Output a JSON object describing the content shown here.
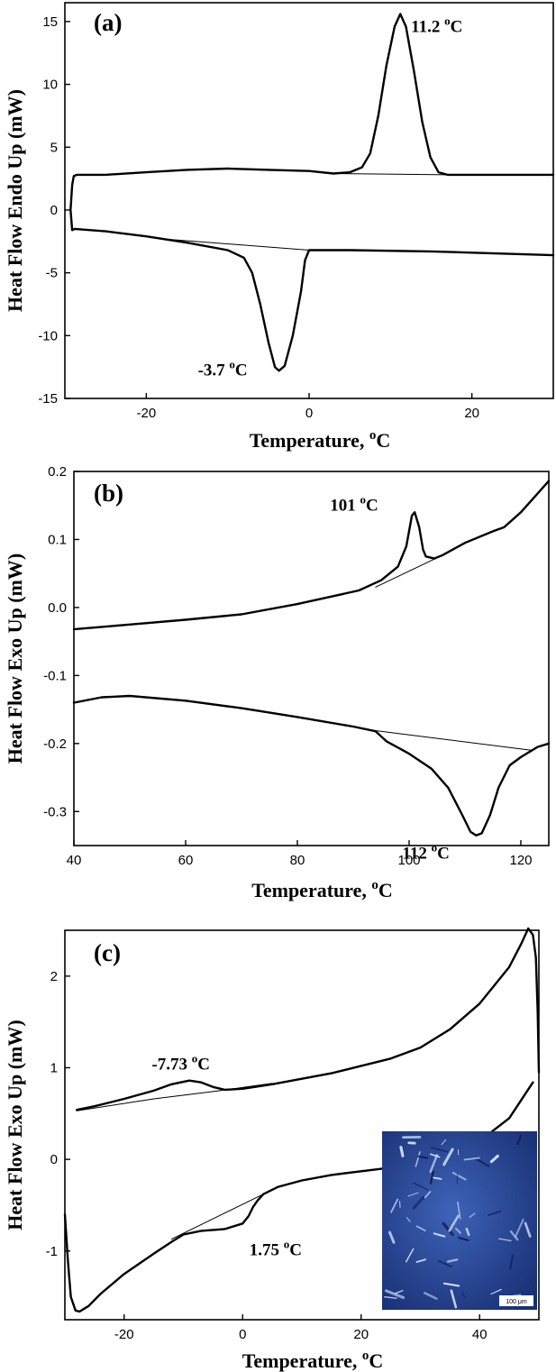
{
  "chart_data": [
    {
      "type": "line",
      "panel_label": "(a)",
      "xlabel": "Temperature, ",
      "xlabel_unit": "C",
      "ylabel": "Heat Flow Endo Up (mW)",
      "xlim": [
        -30,
        30
      ],
      "ylim": [
        -15,
        16.5
      ],
      "xticks": [
        -20,
        0,
        20
      ],
      "yticks": [
        -15,
        -10,
        -5,
        0,
        5,
        10,
        15
      ],
      "annotations": [
        {
          "text": "11.2 ",
          "unit": "C",
          "x": 11.2,
          "y": 15.6
        },
        {
          "text": "-3.7 ",
          "unit": "C",
          "x": -3.7,
          "y": -12.8
        }
      ],
      "series": [
        {
          "points": [
            [
              -29.3,
              0
            ],
            [
              -29.1,
              2.0
            ],
            [
              -28.9,
              2.7
            ],
            [
              -28.5,
              2.8
            ],
            [
              -25,
              2.8
            ],
            [
              -20,
              3.0
            ],
            [
              -15,
              3.2
            ],
            [
              -10,
              3.3
            ],
            [
              -5,
              3.2
            ],
            [
              0,
              3.1
            ],
            [
              3,
              2.9
            ],
            [
              5,
              3.0
            ],
            [
              6.5,
              3.4
            ],
            [
              7.5,
              4.5
            ],
            [
              8.5,
              7.5
            ],
            [
              9.5,
              11.5
            ],
            [
              10.5,
              14.6
            ],
            [
              11.2,
              15.6
            ],
            [
              11.9,
              14.6
            ],
            [
              12.9,
              11
            ],
            [
              13.9,
              7
            ],
            [
              14.9,
              4.2
            ],
            [
              15.9,
              3.0
            ],
            [
              17,
              2.8
            ],
            [
              25,
              2.8
            ],
            [
              30,
              2.8
            ]
          ]
        },
        {
          "points": [
            [
              -29.3,
              0
            ],
            [
              -29.1,
              -1.6
            ],
            [
              -28.8,
              -1.5
            ],
            [
              -25,
              -1.7
            ],
            [
              -20,
              -2.1
            ],
            [
              -15,
              -2.6
            ],
            [
              -10,
              -3.2
            ],
            [
              -8,
              -3.8
            ],
            [
              -7,
              -5.0
            ],
            [
              -6,
              -7.5
            ],
            [
              -5,
              -10.5
            ],
            [
              -4.2,
              -12.5
            ],
            [
              -3.7,
              -12.8
            ],
            [
              -3.0,
              -12.4
            ],
            [
              -2,
              -10.0
            ],
            [
              -1,
              -6.5
            ],
            [
              -0.5,
              -4.0
            ],
            [
              0,
              -3.2
            ],
            [
              5,
              -3.2
            ],
            [
              15,
              -3.3
            ],
            [
              25,
              -3.5
            ],
            [
              30,
              -3.6
            ]
          ]
        },
        {
          "points": [
            [
              3,
              2.9
            ],
            [
              17,
              2.8
            ]
          ],
          "thin": true
        },
        {
          "points": [
            [
              -18,
              -2.3
            ],
            [
              0,
              -3.2
            ]
          ],
          "thin": true
        }
      ]
    },
    {
      "type": "line",
      "panel_label": "(b)",
      "xlabel": "Temperature, ",
      "xlabel_unit": "C",
      "ylabel": "Heat Flow Exo Up (mW)",
      "xlim": [
        40,
        125
      ],
      "ylim": [
        -0.35,
        0.2
      ],
      "xticks": [
        40,
        60,
        80,
        100,
        120
      ],
      "yticks": [
        -0.3,
        -0.2,
        -0.1,
        0.0,
        0.1,
        0.2
      ],
      "ytick_labels": [
        "-0.3",
        "-0.2",
        "-0.1",
        "0.0",
        "0.1",
        "0.2"
      ],
      "annotations": [
        {
          "text": "101 ",
          "unit": "C",
          "x": 101,
          "y": 0.14
        },
        {
          "text": "112 ",
          "unit": "C",
          "x": 112,
          "y": -0.335
        }
      ],
      "series": [
        {
          "points": [
            [
              40,
              -0.032
            ],
            [
              50,
              -0.025
            ],
            [
              60,
              -0.018
            ],
            [
              70,
              -0.01
            ],
            [
              80,
              0.005
            ],
            [
              91,
              0.025
            ],
            [
              95,
              0.04
            ],
            [
              98,
              0.06
            ],
            [
              99.5,
              0.09
            ],
            [
              100.5,
              0.135
            ],
            [
              101,
              0.14
            ],
            [
              101.8,
              0.118
            ],
            [
              102.5,
              0.085
            ],
            [
              103,
              0.075
            ],
            [
              104.5,
              0.072
            ],
            [
              106,
              0.077
            ],
            [
              110,
              0.095
            ],
            [
              115,
              0.112
            ],
            [
              117,
              0.118
            ],
            [
              120,
              0.14
            ],
            [
              125,
              0.186
            ]
          ]
        },
        {
          "points": [
            [
              40,
              -0.14
            ],
            [
              45,
              -0.132
            ],
            [
              50,
              -0.13
            ],
            [
              60,
              -0.137
            ],
            [
              70,
              -0.148
            ],
            [
              80,
              -0.161
            ],
            [
              90,
              -0.175
            ],
            [
              94,
              -0.182
            ],
            [
              96,
              -0.197
            ],
            [
              100,
              -0.215
            ],
            [
              104,
              -0.237
            ],
            [
              107,
              -0.265
            ],
            [
              109.5,
              -0.305
            ],
            [
              111,
              -0.33
            ],
            [
              112,
              -0.335
            ],
            [
              113,
              -0.332
            ],
            [
              114.5,
              -0.305
            ],
            [
              116,
              -0.265
            ],
            [
              118,
              -0.232
            ],
            [
              120,
              -0.22
            ],
            [
              123,
              -0.205
            ],
            [
              125,
              -0.2
            ]
          ]
        },
        {
          "points": [
            [
              94,
              0.03
            ],
            [
              106,
              0.077
            ]
          ],
          "thin": true
        },
        {
          "points": [
            [
              93,
              -0.18
            ],
            [
              122,
              -0.21
            ]
          ],
          "thin": true
        }
      ]
    },
    {
      "type": "line",
      "panel_label": "(c)",
      "xlabel": "Temperature, ",
      "xlabel_unit": "C",
      "ylabel": "Heat Flow Exo Up (mW)",
      "xlim": [
        -30,
        50
      ],
      "ylim": [
        -1.75,
        2.5
      ],
      "xticks": [
        -20,
        0,
        20,
        40
      ],
      "yticks": [
        -1,
        0,
        1,
        2
      ],
      "annotations": [
        {
          "text": "-7.73 ",
          "unit": "C",
          "x": -7.73,
          "y": 0.86
        },
        {
          "text": "1.75 ",
          "unit": "C",
          "x": 1.75,
          "y": -0.75
        }
      ],
      "inset": {
        "scale_bar": "100 μm"
      },
      "series": [
        {
          "points": [
            [
              -28,
              0.54
            ],
            [
              -25,
              0.58
            ],
            [
              -20,
              0.66
            ],
            [
              -15,
              0.75
            ],
            [
              -12,
              0.82
            ],
            [
              -9,
              0.86
            ],
            [
              -7,
              0.84
            ],
            [
              -5,
              0.79
            ],
            [
              -3,
              0.76
            ],
            [
              0,
              0.77
            ],
            [
              5,
              0.82
            ],
            [
              10,
              0.88
            ],
            [
              15,
              0.94
            ],
            [
              20,
              1.02
            ],
            [
              25,
              1.1
            ],
            [
              30,
              1.22
            ],
            [
              35,
              1.42
            ],
            [
              40,
              1.7
            ],
            [
              45,
              2.1
            ],
            [
              47,
              2.35
            ],
            [
              48.2,
              2.52
            ],
            [
              49,
              2.45
            ],
            [
              49.5,
              2.2
            ],
            [
              49.8,
              1.6
            ],
            [
              50,
              0.95
            ]
          ]
        },
        {
          "points": [
            [
              -28,
              0.53
            ],
            [
              -15,
              0.66
            ],
            [
              -5,
              0.74
            ],
            [
              5,
              0.83
            ]
          ],
          "thin": true
        },
        {
          "points": [
            [
              -30,
              -0.6
            ],
            [
              -29.5,
              -1.1
            ],
            [
              -29,
              -1.5
            ],
            [
              -28.2,
              -1.65
            ],
            [
              -27.5,
              -1.66
            ],
            [
              -26,
              -1.6
            ],
            [
              -24,
              -1.47
            ],
            [
              -20,
              -1.25
            ],
            [
              -15,
              -1.03
            ],
            [
              -12,
              -0.9
            ],
            [
              -10,
              -0.82
            ],
            [
              -7,
              -0.78
            ],
            [
              -3,
              -0.76
            ],
            [
              0,
              -0.7
            ],
            [
              1,
              -0.62
            ],
            [
              1.75,
              -0.52
            ],
            [
              2.5,
              -0.45
            ],
            [
              3.5,
              -0.38
            ],
            [
              6,
              -0.3
            ],
            [
              10,
              -0.23
            ],
            [
              15,
              -0.17
            ],
            [
              20,
              -0.13
            ],
            [
              25,
              -0.09
            ],
            [
              30,
              -0.04
            ],
            [
              35,
              0.05
            ],
            [
              40,
              0.2
            ],
            [
              45,
              0.45
            ],
            [
              49,
              0.84
            ]
          ]
        },
        {
          "points": [
            [
              -12,
              -0.87
            ],
            [
              3.5,
              -0.38
            ]
          ],
          "thin": true
        }
      ]
    }
  ]
}
